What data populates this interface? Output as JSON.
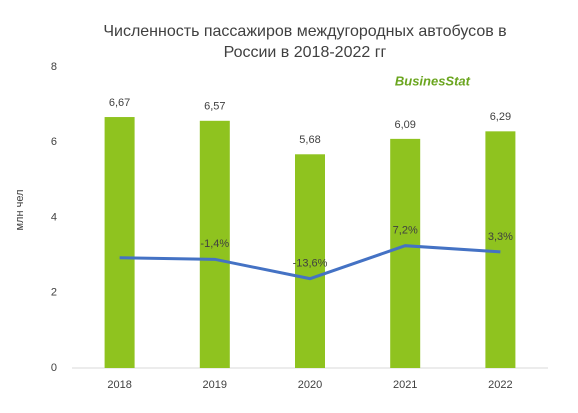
{
  "chart_data": {
    "type": "bar-line",
    "title": [
      "Численность пассажиров междугородных автобусов в",
      "России в 2018-2022 гг"
    ],
    "logo": "BusinesStat",
    "y_label": "млн чел",
    "categories": [
      "2018",
      "2019",
      "2020",
      "2021",
      "2022"
    ],
    "series": [
      {
        "type": "bar",
        "color": "#8fc31f",
        "values": [
          6.67,
          6.57,
          5.68,
          6.09,
          6.29
        ],
        "value_labels": [
          "6,67",
          "6,57",
          "5,68",
          "6,09",
          "6,29"
        ]
      },
      {
        "type": "line",
        "axis": "y2",
        "color": "#4472c4",
        "values": [
          -0.4,
          -1.4,
          -13.6,
          7.2,
          3.3
        ],
        "value_labels": [
          null,
          "-1,4%",
          "-13,6%",
          "7,2%",
          "3,3%"
        ]
      }
    ],
    "ylim": [
      0,
      8
    ],
    "yticks": [
      0,
      2,
      4,
      6,
      8
    ],
    "y2lim": [
      -70,
      120
    ]
  }
}
